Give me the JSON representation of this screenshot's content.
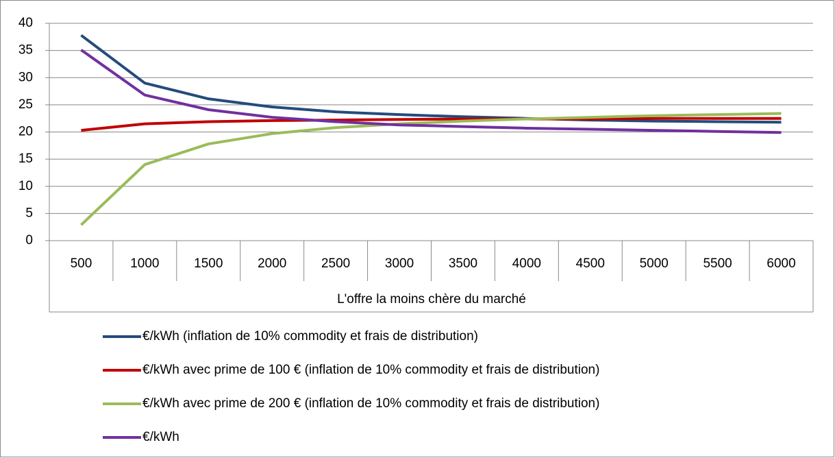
{
  "chart_data": {
    "type": "line",
    "x_label": "L'offre la moins chère du marché",
    "categories": [
      "500",
      "1000",
      "1500",
      "2000",
      "2500",
      "3000",
      "3500",
      "4000",
      "4500",
      "5000",
      "5500",
      "6000"
    ],
    "series": [
      {
        "name": "€/kWh (inflation de 10% commodity et frais de distribution)",
        "color": "#254b7c",
        "values": [
          37.8,
          29,
          26.1,
          24.6,
          23.7,
          23.2,
          22.8,
          22.5,
          22.2,
          22.0,
          21.9,
          21.8
        ]
      },
      {
        "name": "€/kWh avec prime de 100 € (inflation de 10% commodity et frais de distribution)",
        "color": "#c00000",
        "values": [
          20.3,
          21.5,
          21.9,
          22.1,
          22.2,
          22.3,
          22.4,
          22.4,
          22.4,
          22.5,
          22.5,
          22.5
        ]
      },
      {
        "name": "€/kWh avec prime de 200 € (inflation de 10% commodity et frais de distribution)",
        "color": "#9bbb59",
        "values": [
          2.9,
          14,
          17.8,
          19.7,
          20.8,
          21.5,
          22.0,
          22.4,
          22.7,
          23.0,
          23.2,
          23.4
        ]
      },
      {
        "name": "€/kWh",
        "color": "#7030a0",
        "values": [
          35.1,
          26.8,
          24.1,
          22.7,
          21.9,
          21.3,
          21.0,
          20.7,
          20.5,
          20.3,
          20.1,
          19.9
        ]
      }
    ],
    "ylim": [
      0,
      40
    ],
    "yticks": [
      0,
      5,
      10,
      15,
      20,
      25,
      30,
      35,
      40
    ],
    "grid": true,
    "legend": "bottom"
  }
}
